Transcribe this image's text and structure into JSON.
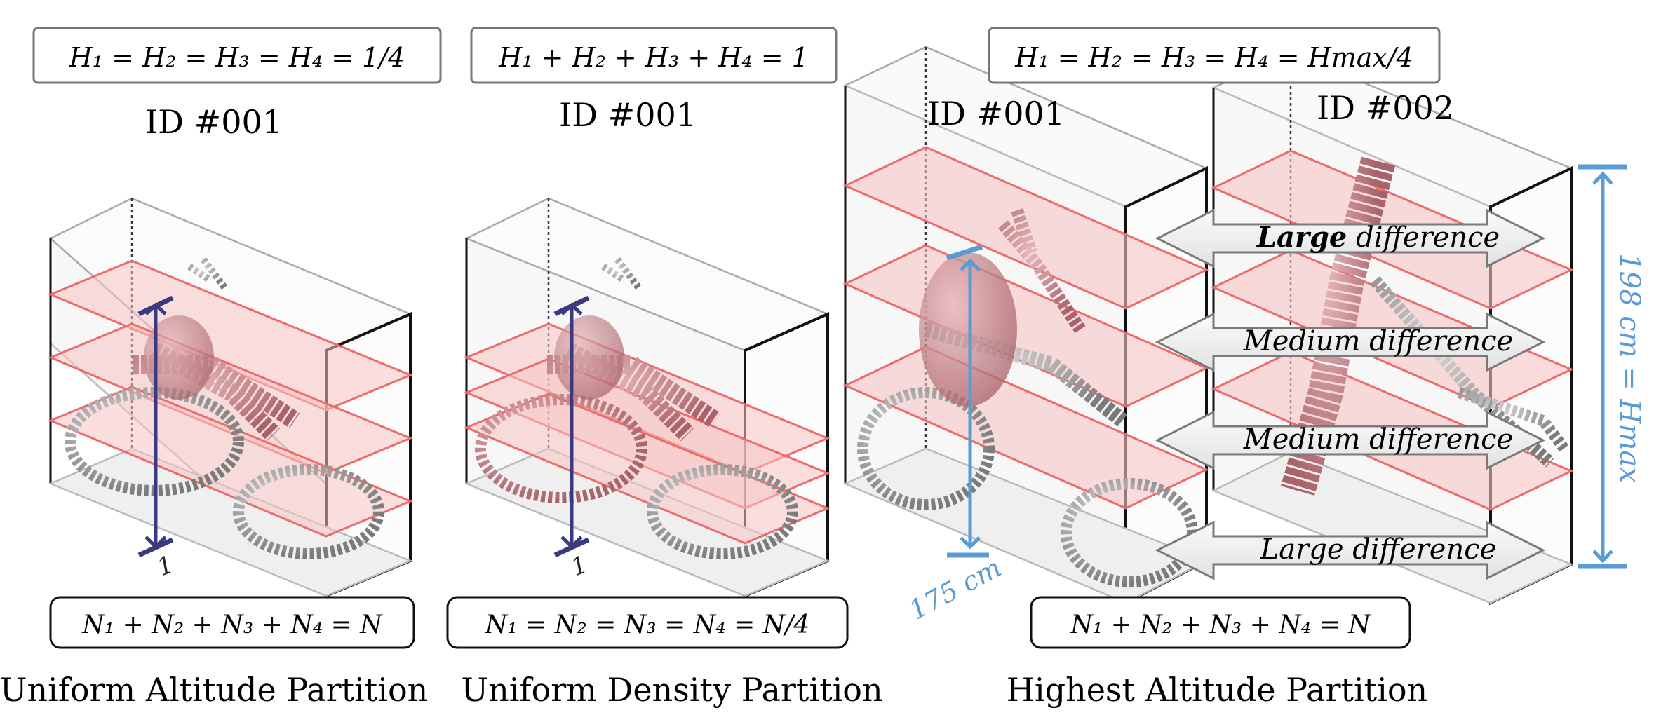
{
  "panels": [
    {
      "formula_top": "H₁ = H₂ = H₃ = H₄ = 1/4",
      "ids": [
        "ID #001"
      ],
      "formula_bottom": "N₁ + N₂ + N₃ + N₄ = N",
      "height_label": "1",
      "caption": "Uniform Altitude Partition"
    },
    {
      "formula_top": "H₁ + H₂ + H₃ + H₄ = 1",
      "ids": [
        "ID #001"
      ],
      "formula_bottom": "N₁ = N₂ = N₃ = N₄ = N/4",
      "height_label": "1",
      "caption": "Uniform Density Partition"
    },
    {
      "formula_top": "H₁ = H₂ = H₃ = H₄ = Hmax/4",
      "ids": [
        "ID #001",
        "ID #002"
      ],
      "formula_bottom": "N₁ + N₂ + N₃ + N₄ = N",
      "height_label": "175 cm",
      "hmax_label": "198 cm = Hmax",
      "differences": [
        {
          "bold": "Large",
          "rest": " difference"
        },
        {
          "bold": "",
          "rest": "Medium difference"
        },
        {
          "bold": "",
          "rest": "Medium difference"
        },
        {
          "bold": "",
          "rest": "Large difference"
        }
      ],
      "caption": "Highest Altitude Partition"
    }
  ],
  "colors": {
    "slice_fill": "#f7c5c5",
    "slice_edge": "#ee6b6b",
    "points_red": "#c98a8f",
    "points_grey": "#8f8f8f",
    "arrow_navy": "#3b3a80",
    "arrow_blue": "#5b9bd5"
  }
}
